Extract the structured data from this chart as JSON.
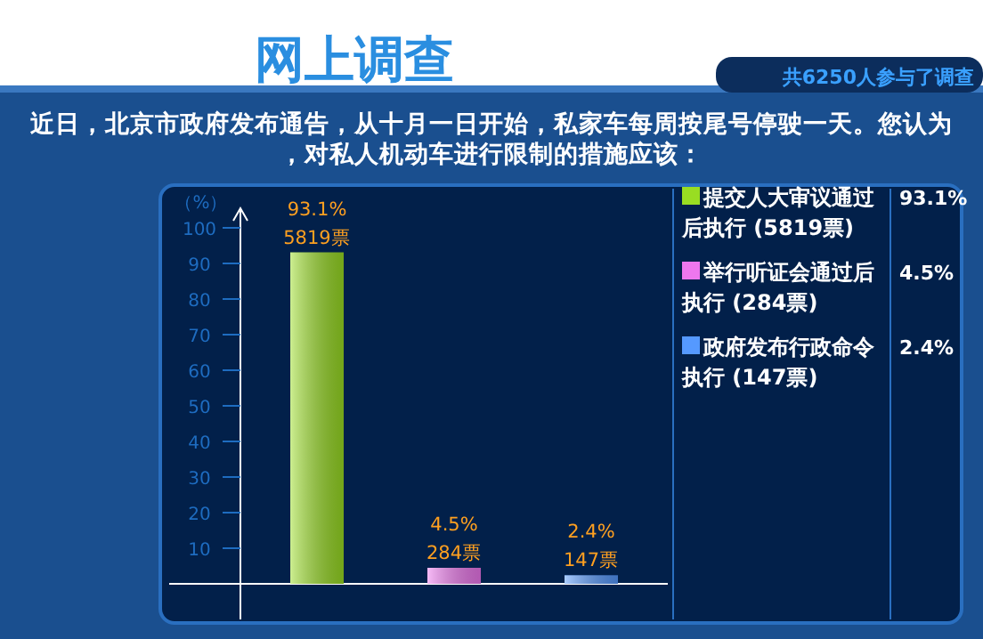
{
  "chart_data": {
    "type": "bar",
    "title": "网上调查",
    "subtitle": "近日，北京市政府发布通告，从十月一日开始，私家车每周按尾号停驶一天。您认为，对私人机动车进行限制的措施应该：",
    "ylabel": "（%）",
    "categories": [
      null,
      null,
      null
    ],
    "series": [
      {
        "name": "提交人大审议通过后执行 (5819票)",
        "color": "#99dd22",
        "values": [
          93.1,
          null,
          null
        ],
        "value_labels": [
          "93.1%",
          null,
          null
        ]
      },
      {
        "name": "举行听证会通过后执行 (284票)",
        "color": "#ee77ee",
        "values": [
          null,
          4.5,
          null
        ],
        "value_labels": [
          null,
          "4.5%",
          null
        ]
      },
      {
        "name": "政府发布行政命令执行 (147票)",
        "color": "#5599ff",
        "values": [
          null,
          null,
          2.4
        ],
        "value_labels": [
          null,
          null,
          "2.4%"
        ]
      }
    ],
    "annotations": [
      "共6250人参与了调查",
      {
        "text": "5819票",
        "y": 93.1
      },
      {
        "text": "284票",
        "y": 4.5
      },
      {
        "text": "147票",
        "y": 2.4
      }
    ],
    "ylim": [
      0,
      100
    ],
    "yticks": [
      10,
      20,
      30,
      40,
      50,
      60,
      70,
      80,
      90,
      100
    ],
    "legend": "right",
    "grid": false
  }
}
